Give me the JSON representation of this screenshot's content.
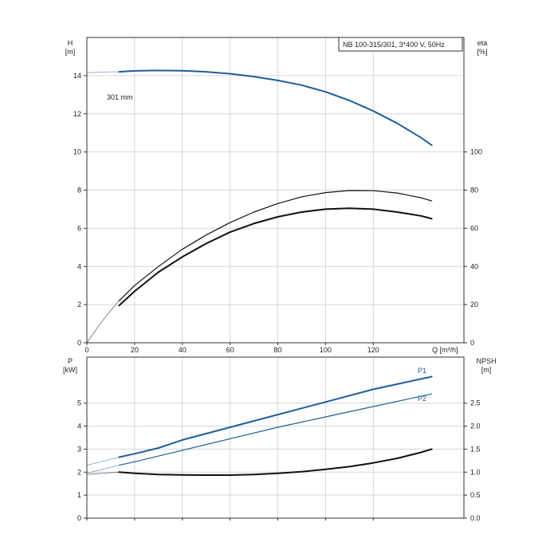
{
  "title_box": "NB 100-315/301, 3*400 V, 50Hz",
  "chart_data": [
    {
      "type": "line",
      "panel": "head-efficiency",
      "xlabel": "Q [m³/h]",
      "x_ticks": [
        "0",
        "20",
        "40",
        "60",
        "80",
        "100",
        "120"
      ],
      "xlim": [
        0,
        158
      ],
      "left_axis": {
        "label_top": "H",
        "label_unit": "[m]",
        "ylim": [
          0,
          16
        ],
        "ticks": [
          "0",
          "2",
          "4",
          "6",
          "8",
          "10",
          "12",
          "14"
        ]
      },
      "right_axis": {
        "label_top": "eta",
        "label_unit": "[%]",
        "ylim": [
          0,
          160
        ],
        "ticks": [
          "0",
          "20",
          "40",
          "60",
          "80",
          "100"
        ]
      },
      "series": [
        {
          "id": "head",
          "name": "301 mm",
          "axis": "left",
          "color": "#1f5f99",
          "extension": {
            "x": [
              0,
              5,
              10,
              13.5
            ],
            "y": [
              14.15,
              14.18,
              14.2,
              14.2
            ]
          },
          "x": [
            13.5,
            20,
            30,
            40,
            50,
            60,
            70,
            80,
            90,
            100,
            110,
            120,
            130,
            140,
            144.5
          ],
          "y": [
            14.2,
            14.25,
            14.27,
            14.26,
            14.2,
            14.1,
            13.95,
            13.75,
            13.5,
            13.15,
            12.7,
            12.15,
            11.5,
            10.75,
            10.35
          ]
        },
        {
          "id": "eta-upper",
          "axis": "right",
          "color": "#111111",
          "extension": {
            "x": [
              0,
              5,
              10,
              13.5
            ],
            "y": [
              0,
              9,
              17,
              22
            ]
          },
          "x": [
            13.5,
            20,
            30,
            40,
            50,
            60,
            70,
            80,
            90,
            100,
            110,
            120,
            130,
            140,
            144.5
          ],
          "y": [
            22,
            30,
            40,
            49,
            56.5,
            63,
            68.5,
            73,
            76.5,
            78.7,
            79.8,
            79.7,
            78.5,
            76,
            74.3
          ]
        },
        {
          "id": "eta-lower",
          "axis": "right",
          "color": "#111111",
          "x": [
            13.5,
            20,
            30,
            40,
            50,
            60,
            70,
            80,
            90,
            100,
            110,
            120,
            130,
            140,
            144.5
          ],
          "y": [
            19.5,
            27,
            37,
            45,
            52,
            58,
            62.5,
            66,
            68.5,
            70,
            70.5,
            70,
            68.5,
            66.5,
            65
          ]
        }
      ]
    },
    {
      "type": "line",
      "panel": "power-npsh",
      "left_axis": {
        "label_top": "P",
        "label_unit": "[kW]",
        "ylim": [
          0,
          7
        ],
        "ticks": [
          "0",
          "1",
          "2",
          "3",
          "4",
          "5"
        ]
      },
      "right_axis": {
        "label_top": "NPSH",
        "label_unit": "[m]",
        "ylim": [
          0,
          3.5
        ],
        "ticks": [
          "0.0",
          "0.5",
          "1.0",
          "1.5",
          "2.0",
          "2.5"
        ]
      },
      "series": [
        {
          "id": "p1",
          "name": "P1",
          "axis": "left",
          "color": "#1f5f99",
          "extension": {
            "x": [
              0,
              13.5
            ],
            "y": [
              2.3,
              2.65
            ]
          },
          "x": [
            13.5,
            20,
            30,
            40,
            60,
            80,
            100,
            120,
            140,
            144.5
          ],
          "y": [
            2.65,
            2.8,
            3.05,
            3.4,
            3.95,
            4.5,
            5.05,
            5.6,
            6.05,
            6.15
          ]
        },
        {
          "id": "p2",
          "name": "P2",
          "axis": "left",
          "color": "#1f5f99",
          "extension": {
            "x": [
              0,
              13.5
            ],
            "y": [
              1.95,
              2.3
            ]
          },
          "x": [
            13.5,
            20,
            40,
            60,
            80,
            100,
            120,
            140,
            144.5
          ],
          "y": [
            2.3,
            2.45,
            2.95,
            3.45,
            3.95,
            4.4,
            4.85,
            5.3,
            5.4
          ]
        },
        {
          "id": "npsh",
          "axis": "right",
          "color": "#111111",
          "extension": {
            "x": [
              0,
              13.5
            ],
            "y": [
              0.95,
              1.0
            ]
          },
          "x": [
            13.5,
            20,
            30,
            40,
            50,
            60,
            70,
            80,
            90,
            100,
            110,
            120,
            130,
            140,
            144.5
          ],
          "y": [
            1.0,
            0.975,
            0.95,
            0.94,
            0.935,
            0.935,
            0.95,
            0.975,
            1.01,
            1.06,
            1.12,
            1.2,
            1.3,
            1.43,
            1.5
          ]
        }
      ]
    }
  ]
}
